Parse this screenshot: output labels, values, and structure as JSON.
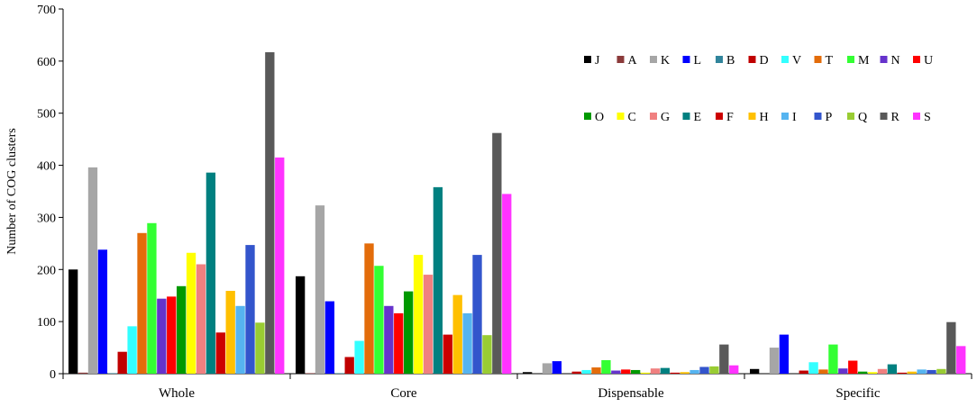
{
  "chart_data": {
    "type": "bar",
    "title": "",
    "xlabel": "",
    "ylabel": "Number of COG clusters",
    "ylim": [
      0,
      700
    ],
    "yticks": [
      0,
      100,
      200,
      300,
      400,
      500,
      600,
      700
    ],
    "grid": false,
    "legend_position": "top-right",
    "categories": [
      "Whole",
      "Core",
      "Dispensable",
      "Specific"
    ],
    "series": [
      {
        "name": "J",
        "color": "#000000",
        "values": [
          200,
          187,
          3,
          9
        ]
      },
      {
        "name": "A",
        "color": "#8B3A3A",
        "values": [
          2,
          1,
          0,
          0
        ]
      },
      {
        "name": "K",
        "color": "#A6A6A6",
        "values": [
          396,
          323,
          20,
          50
        ]
      },
      {
        "name": "L",
        "color": "#0000FF",
        "values": [
          238,
          139,
          24,
          75
        ]
      },
      {
        "name": "B",
        "color": "#31859C",
        "values": [
          1,
          1,
          0,
          0
        ]
      },
      {
        "name": "D",
        "color": "#C00000",
        "values": [
          42,
          32,
          4,
          6
        ]
      },
      {
        "name": "V",
        "color": "#33FFFF",
        "values": [
          91,
          63,
          7,
          22
        ]
      },
      {
        "name": "T",
        "color": "#E36C0A",
        "values": [
          270,
          250,
          12,
          8
        ]
      },
      {
        "name": "M",
        "color": "#33FF33",
        "values": [
          289,
          207,
          26,
          56
        ]
      },
      {
        "name": "N",
        "color": "#6633CC",
        "values": [
          144,
          130,
          6,
          10
        ]
      },
      {
        "name": "U",
        "color": "#FF0000",
        "values": [
          148,
          116,
          8,
          25
        ]
      },
      {
        "name": "O",
        "color": "#009900",
        "values": [
          168,
          158,
          7,
          4
        ]
      },
      {
        "name": "C",
        "color": "#FFFF00",
        "values": [
          232,
          228,
          2,
          3
        ]
      },
      {
        "name": "G",
        "color": "#F08080",
        "values": [
          210,
          190,
          10,
          9
        ]
      },
      {
        "name": "E",
        "color": "#008080",
        "values": [
          386,
          358,
          11,
          18
        ]
      },
      {
        "name": "F",
        "color": "#CC0000",
        "values": [
          79,
          75,
          2,
          2
        ]
      },
      {
        "name": "H",
        "color": "#FFC000",
        "values": [
          159,
          151,
          3,
          4
        ]
      },
      {
        "name": "I",
        "color": "#56B4F0",
        "values": [
          130,
          116,
          7,
          8
        ]
      },
      {
        "name": "P",
        "color": "#3355CC",
        "values": [
          247,
          228,
          13,
          7
        ]
      },
      {
        "name": "Q",
        "color": "#99CC33",
        "values": [
          98,
          74,
          14,
          9
        ]
      },
      {
        "name": "R",
        "color": "#595959",
        "values": [
          617,
          462,
          56,
          99
        ]
      },
      {
        "name": "S",
        "color": "#FF33FF",
        "values": [
          415,
          345,
          16,
          53
        ]
      }
    ]
  }
}
